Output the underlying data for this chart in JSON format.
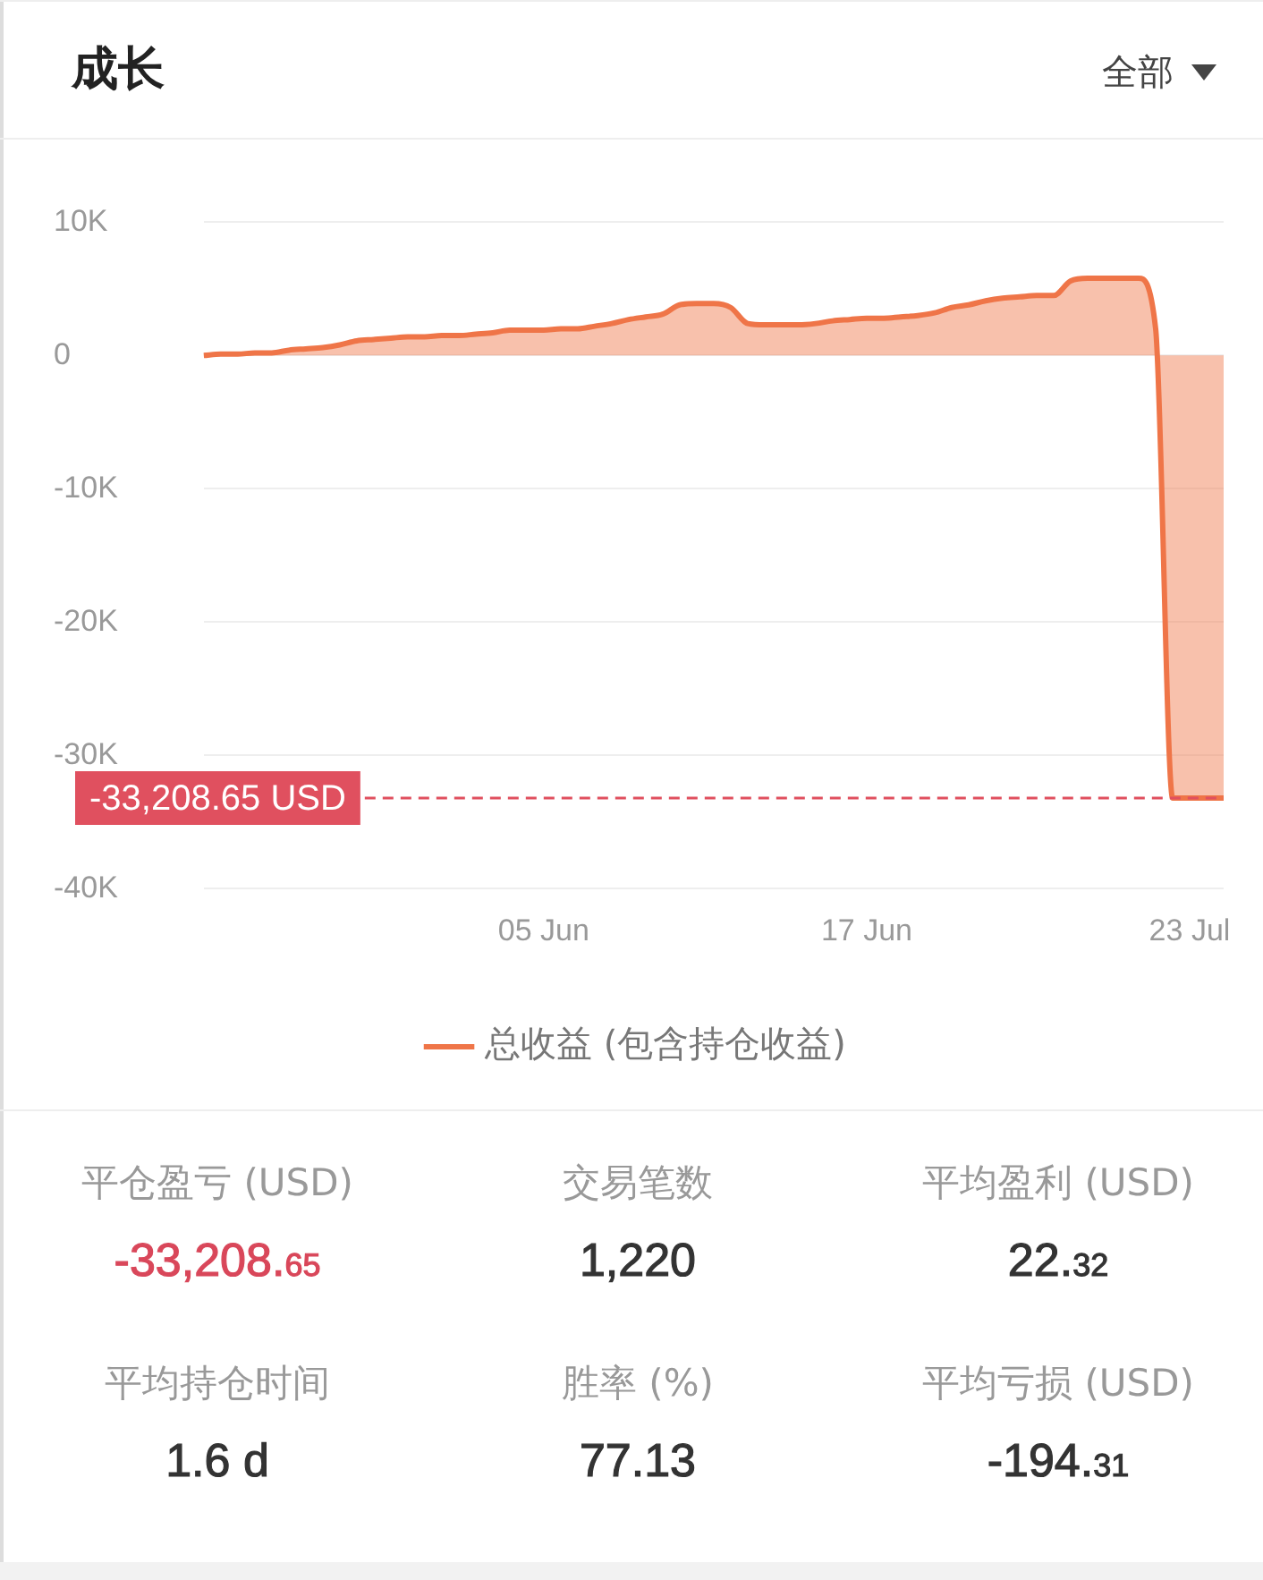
{
  "chart_data": [
    {
      "type": "area",
      "title": "成长",
      "annotations": [
        "全部"
      ],
      "categories": [
        null,
        null,
        null,
        null,
        null,
        null,
        null,
        null,
        null,
        null,
        null,
        null,
        null,
        null,
        null,
        null,
        null,
        null,
        null,
        null,
        "05 Jun",
        null,
        null,
        null,
        null,
        null,
        null,
        null,
        null,
        null,
        null,
        null,
        null,
        null,
        null,
        null,
        null,
        null,
        null,
        "17 Jun",
        null,
        null,
        null,
        null,
        null,
        null,
        null,
        null,
        null,
        null,
        null,
        null,
        null,
        null,
        null,
        null,
        null,
        null,
        "23 Jul",
        null,
        null
      ],
      "series": [
        {
          "name": "总收益 (包含持仓收益)",
          "color": "#ef7548",
          "values": [
            0,
            100,
            100,
            200,
            200,
            400,
            500,
            600,
            800,
            1100,
            1200,
            1300,
            1400,
            1400,
            1500,
            1500,
            1600,
            1700,
            1900,
            1900,
            1900,
            2000,
            2000,
            2200,
            2400,
            2700,
            2900,
            3100,
            3800,
            3900,
            3900,
            3600,
            2400,
            2300,
            2300,
            2300,
            2400,
            2600,
            2700,
            2800,
            2800,
            2900,
            3000,
            3200,
            3600,
            3800,
            4100,
            4300,
            4400,
            4500,
            4500,
            5600,
            5800,
            5800,
            5800,
            5800,
            2000,
            -33200,
            -33200,
            -33200,
            -33200
          ]
        }
      ],
      "ylim": [
        -40000,
        10000
      ],
      "yticks": [
        {
          "value": -40000,
          "label": "-40K"
        },
        {
          "value": -30000,
          "label": "-30K"
        },
        {
          "value": -20000,
          "label": "-20K"
        },
        {
          "value": -10000,
          "label": "-10K"
        },
        0,
        {
          "value": 10000,
          "label": "10K"
        }
      ],
      "ref_lines": [
        {
          "axis": "y",
          "value": -33208.65,
          "label": "-33,208.65 USD",
          "color": "#e0505f",
          "line_style": "dashed"
        }
      ],
      "grid": "y",
      "legend": "bottom",
      "marker": "none",
      "line_style": "solid"
    },
    {
      "type": "other",
      "annotations": [
        "平仓盈亏 (USD)",
        "-33,208.65",
        "交易笔数",
        "1,220",
        "平均盈利 (USD)",
        "22.32",
        "平均持仓时间",
        "1.6 d",
        "胜率 (%)",
        "77.13",
        "平均亏损 (USD)",
        "-194.31"
      ],
      "colors": [
        "#999999",
        "#d9475a",
        "#999999",
        "#333333",
        "#999999",
        "#333333",
        "#999999",
        "#333333",
        "#999999",
        "#333333",
        "#999999",
        "#333333"
      ]
    }
  ]
}
